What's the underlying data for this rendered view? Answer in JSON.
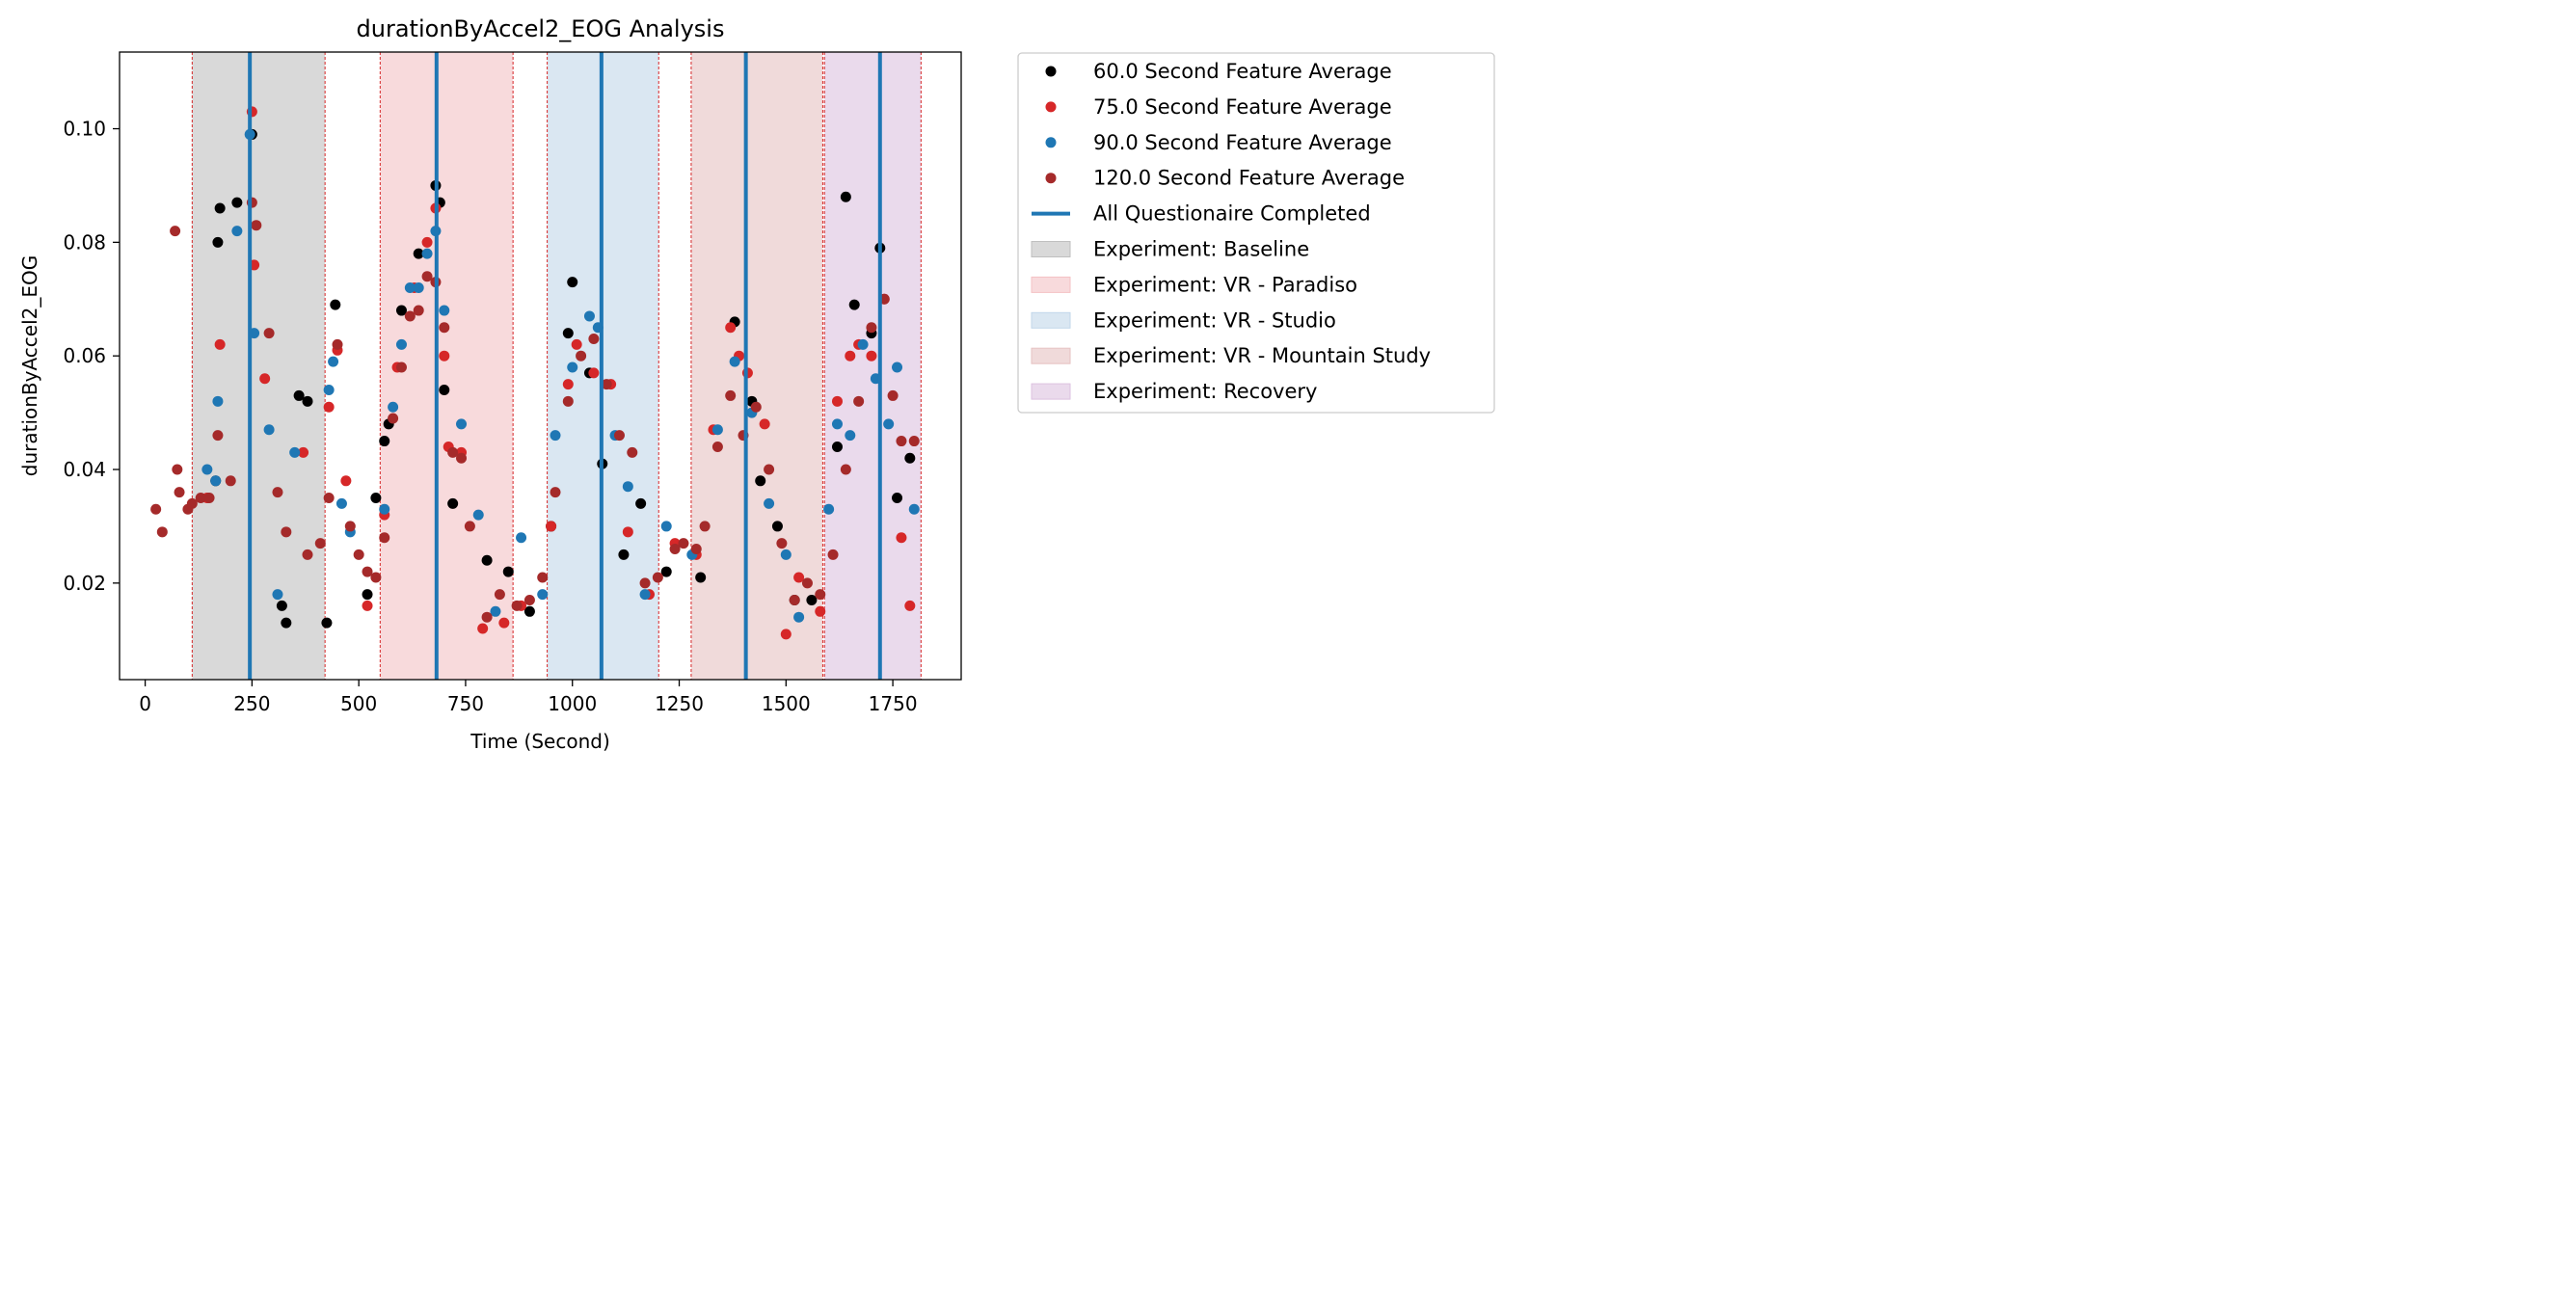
{
  "chart_data": {
    "type": "scatter",
    "title": "durationByAccel2_EOG Analysis",
    "xlabel": "Time (Second)",
    "ylabel": "durationByAccel2_EOG",
    "xlim": [
      -60,
      1910
    ],
    "ylim": [
      0.003,
      0.1135
    ],
    "xticks": [
      0,
      250,
      500,
      750,
      1000,
      1250,
      1500,
      1750
    ],
    "yticks": [
      0.02,
      0.04,
      0.06,
      0.08,
      0.1
    ],
    "xtick_labels": [
      "0",
      "250",
      "500",
      "750",
      "1000",
      "1250",
      "1500",
      "1750"
    ],
    "ytick_labels": [
      "0.02",
      "0.04",
      "0.06",
      "0.08",
      "0.10"
    ],
    "grid": false,
    "legend_position": "outside-right",
    "series": [
      {
        "name": "60.0 Second Feature Average",
        "color": "#000000",
        "x": [
          165,
          170,
          175,
          215,
          250,
          320,
          330,
          360,
          380,
          425,
          445,
          520,
          540,
          560,
          570,
          600,
          640,
          680,
          690,
          700,
          720,
          800,
          850,
          900,
          950,
          990,
          1000,
          1040,
          1070,
          1120,
          1160,
          1220,
          1300,
          1380,
          1420,
          1440,
          1480,
          1520,
          1560,
          1620,
          1640,
          1660,
          1700,
          1720,
          1760,
          1790
        ],
        "y": [
          0.038,
          0.08,
          0.086,
          0.087,
          0.099,
          0.016,
          0.013,
          0.053,
          0.052,
          0.013,
          0.069,
          0.018,
          0.035,
          0.045,
          0.048,
          0.068,
          0.078,
          0.09,
          0.087,
          0.054,
          0.034,
          0.024,
          0.022,
          0.015,
          0.03,
          0.064,
          0.073,
          0.057,
          0.041,
          0.025,
          0.034,
          0.022,
          0.021,
          0.066,
          0.052,
          0.038,
          0.03,
          0.017,
          0.017,
          0.044,
          0.088,
          0.069,
          0.064,
          0.079,
          0.035,
          0.042
        ]
      },
      {
        "name": "75.0 Second Feature Average",
        "color": "#d62728",
        "x": [
          145,
          175,
          250,
          255,
          280,
          370,
          430,
          450,
          470,
          520,
          560,
          590,
          630,
          660,
          680,
          700,
          710,
          740,
          790,
          840,
          880,
          950,
          990,
          1010,
          1050,
          1090,
          1130,
          1180,
          1240,
          1290,
          1330,
          1370,
          1390,
          1410,
          1450,
          1500,
          1530,
          1580,
          1620,
          1650,
          1670,
          1700,
          1730,
          1770,
          1790
        ],
        "y": [
          0.035,
          0.062,
          0.103,
          0.076,
          0.056,
          0.043,
          0.051,
          0.061,
          0.038,
          0.016,
          0.032,
          0.058,
          0.072,
          0.08,
          0.086,
          0.06,
          0.044,
          0.043,
          0.012,
          0.013,
          0.016,
          0.03,
          0.055,
          0.062,
          0.057,
          0.055,
          0.029,
          0.018,
          0.027,
          0.025,
          0.047,
          0.065,
          0.06,
          0.057,
          0.048,
          0.011,
          0.021,
          0.015,
          0.052,
          0.06,
          0.062,
          0.06,
          0.07,
          0.028,
          0.016
        ]
      },
      {
        "name": "90.0 Second Feature Average",
        "color": "#1f77b4",
        "x": [
          145,
          165,
          170,
          215,
          245,
          255,
          290,
          310,
          350,
          430,
          440,
          460,
          480,
          560,
          580,
          600,
          620,
          640,
          660,
          680,
          700,
          740,
          780,
          820,
          880,
          930,
          960,
          1000,
          1040,
          1060,
          1100,
          1130,
          1170,
          1220,
          1280,
          1340,
          1380,
          1420,
          1460,
          1500,
          1530,
          1600,
          1620,
          1650,
          1680,
          1710,
          1740,
          1760,
          1800
        ],
        "y": [
          0.04,
          0.038,
          0.052,
          0.082,
          0.099,
          0.064,
          0.047,
          0.018,
          0.043,
          0.054,
          0.059,
          0.034,
          0.029,
          0.033,
          0.051,
          0.062,
          0.072,
          0.072,
          0.078,
          0.082,
          0.068,
          0.048,
          0.032,
          0.015,
          0.028,
          0.018,
          0.046,
          0.058,
          0.067,
          0.065,
          0.046,
          0.037,
          0.018,
          0.03,
          0.025,
          0.047,
          0.059,
          0.05,
          0.034,
          0.025,
          0.014,
          0.033,
          0.048,
          0.046,
          0.062,
          0.056,
          0.048,
          0.058,
          0.033
        ]
      },
      {
        "name": "120.0 Second Feature Average",
        "color": "#a52a2a",
        "x": [
          25,
          40,
          70,
          75,
          80,
          100,
          110,
          130,
          150,
          170,
          200,
          250,
          260,
          290,
          310,
          330,
          380,
          410,
          430,
          450,
          480,
          500,
          520,
          540,
          560,
          580,
          600,
          620,
          640,
          660,
          680,
          700,
          720,
          740,
          760,
          800,
          830,
          870,
          900,
          930,
          960,
          990,
          1020,
          1050,
          1080,
          1110,
          1140,
          1170,
          1200,
          1240,
          1260,
          1290,
          1310,
          1340,
          1370,
          1400,
          1430,
          1460,
          1490,
          1520,
          1550,
          1580,
          1610,
          1640,
          1670,
          1700,
          1730,
          1750,
          1770,
          1800
        ],
        "y": [
          0.033,
          0.029,
          0.082,
          0.04,
          0.036,
          0.033,
          0.034,
          0.035,
          0.035,
          0.046,
          0.038,
          0.087,
          0.083,
          0.064,
          0.036,
          0.029,
          0.025,
          0.027,
          0.035,
          0.062,
          0.03,
          0.025,
          0.022,
          0.021,
          0.028,
          0.049,
          0.058,
          0.067,
          0.068,
          0.074,
          0.073,
          0.065,
          0.043,
          0.042,
          0.03,
          0.014,
          0.018,
          0.016,
          0.017,
          0.021,
          0.036,
          0.052,
          0.06,
          0.063,
          0.055,
          0.046,
          0.043,
          0.02,
          0.021,
          0.026,
          0.027,
          0.026,
          0.03,
          0.044,
          0.053,
          0.046,
          0.051,
          0.04,
          0.027,
          0.017,
          0.02,
          0.018,
          0.025,
          0.04,
          0.052,
          0.065,
          0.07,
          0.053,
          0.045,
          0.045
        ]
      }
    ],
    "vertical_lines": {
      "name": "All Questionaire Completed",
      "color": "#1f77b4",
      "x": [
        245,
        682,
        1068,
        1406,
        1720
      ]
    },
    "regions": [
      {
        "name": "Experiment: Baseline",
        "color": "#bfbfbf",
        "start": 110,
        "end": 421
      },
      {
        "name": "Experiment: VR - Paradiso",
        "color": "#f4c2c4",
        "start": 550,
        "end": 861
      },
      {
        "name": "Experiment: VR - Studio",
        "color": "#c2d7ea",
        "start": 941,
        "end": 1202
      },
      {
        "name": "Experiment: VR - Mountain Study",
        "color": "#e6c2c2",
        "start": 1278,
        "end": 1586
      },
      {
        "name": "Experiment: Recovery",
        "color": "#dcc2e0",
        "start": 1590,
        "end": 1816
      }
    ]
  }
}
